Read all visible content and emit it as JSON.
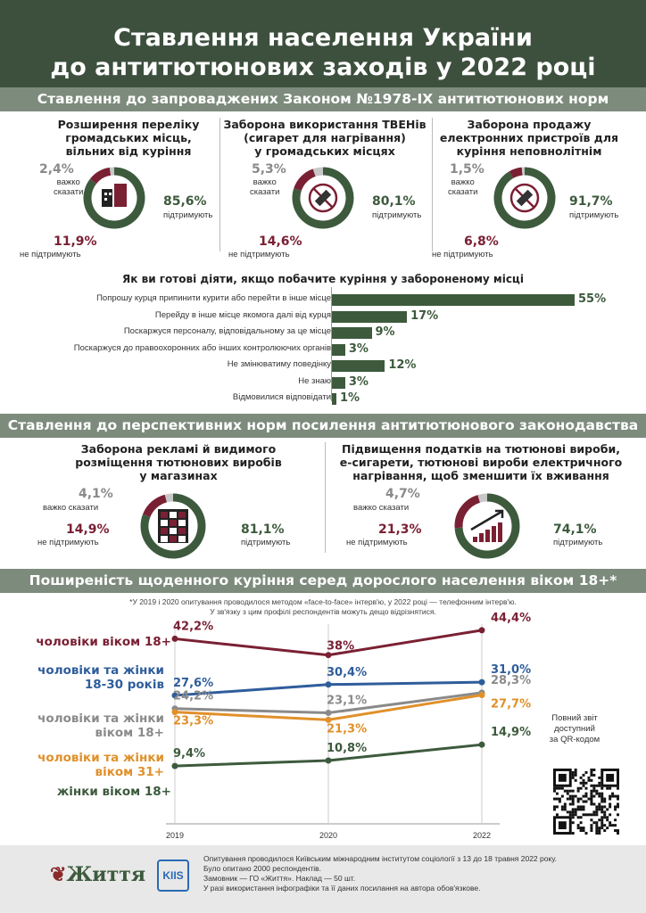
{
  "title": {
    "line1": "Ставлення населення України",
    "line2": "до антитютюнових заходів у 2022 році"
  },
  "section1": {
    "title": "Ставлення до запроваджених Законом №1978-IX антитютюнових норм"
  },
  "donuts_top": [
    {
      "title": [
        "Розширення переліку",
        "громадських місць,",
        "вільних від куріння"
      ],
      "support": "85,6%",
      "support_label": "підтримують",
      "oppose": "11,9%",
      "oppose_label": "не підтримують",
      "unsure": "2,4%",
      "unsure_label": [
        "важко",
        "сказати"
      ],
      "values": [
        85.6,
        11.9,
        2.4
      ],
      "icon": "buildings-icon"
    },
    {
      "title": [
        "Заборона використання ТВЕНів",
        "(сигарет для нагрівання)",
        "у громадських місцях"
      ],
      "support": "80,1%",
      "support_label": "підтримують",
      "oppose": "14,6%",
      "oppose_label": "не підтримують",
      "unsure": "5,3%",
      "unsure_label": [
        "важко",
        "сказати"
      ],
      "values": [
        80.1,
        14.6,
        5.3
      ],
      "icon": "no-heated-tobacco-icon"
    },
    {
      "title": [
        "Заборона продажу",
        "електронних пристроїв для",
        "куріння неповнолітнім"
      ],
      "support": "91,7%",
      "support_label": "підтримують",
      "oppose": "6,8%",
      "oppose_label": "не підтримують",
      "unsure": "1,5%",
      "unsure_label": [
        "важко",
        "сказати"
      ],
      "values": [
        91.7,
        6.8,
        1.5
      ],
      "icon": "no-vape-icon"
    }
  ],
  "question": "Як ви готові діяти, якщо побачите куріння у забороненому місці",
  "chart_data": [
    {
      "type": "bar",
      "title": "Як ви готові діяти, якщо побачите куріння у забороненому місці",
      "categories": [
        "Попрошу курця припинити курити або перейти в інше місце",
        "Перейду в інше місце якомога далі від курця",
        "Поскаржуся персоналу, відповідальному за це місце",
        "Поскаржуся до правоохоронних або інших контролюючих органів",
        "Не змінюватиму поведінку",
        "Не знаю",
        "Відмовилися відповідати"
      ],
      "values": [
        55,
        17,
        9,
        3,
        12,
        3,
        1
      ],
      "labels": [
        "55%",
        "17%",
        "9%",
        "3%",
        "12%",
        "3%",
        "1%"
      ],
      "xlim": [
        0,
        55
      ]
    },
    {
      "type": "pie",
      "title": "Розширення переліку громадських місць, вільних від куріння",
      "categories": [
        "підтримують",
        "не підтримують",
        "важко сказати"
      ],
      "values": [
        85.6,
        11.9,
        2.4
      ]
    },
    {
      "type": "pie",
      "title": "Заборона використання ТВЕНів (сигарет для нагрівання) у громадських місцях",
      "categories": [
        "підтримують",
        "не підтримують",
        "важко сказати"
      ],
      "values": [
        80.1,
        14.6,
        5.3
      ]
    },
    {
      "type": "pie",
      "title": "Заборона продажу електронних пристроїв для куріння неповнолітнім",
      "categories": [
        "підтримують",
        "не підтримують",
        "важко сказати"
      ],
      "values": [
        91.7,
        6.8,
        1.5
      ]
    },
    {
      "type": "pie",
      "title": "Заборона рекламі й видимого розміщення тютюнових виробів у магазинах",
      "categories": [
        "підтримують",
        "не підтримують",
        "важко сказати"
      ],
      "values": [
        81.1,
        14.9,
        4.1
      ]
    },
    {
      "type": "pie",
      "title": "Підвищення податків на тютюнові вироби, е-сигарети, тютюнові вироби електричного нагрівання, щоб зменшити їх вживання",
      "categories": [
        "підтримують",
        "не підтримують",
        "важко сказати"
      ],
      "values": [
        74.1,
        21.3,
        4.7
      ]
    },
    {
      "type": "line",
      "title": "Поширеність щоденного куріння серед дорослого населення віком 18+*",
      "x": [
        "2019",
        "2020",
        "2022"
      ],
      "series": [
        {
          "name": "чоловіки віком 18+",
          "values": [
            42.2,
            38,
            44.4
          ],
          "labels": [
            "42,2%",
            "38%",
            "44,4%"
          ],
          "color": "#7a2033"
        },
        {
          "name": "чоловіки та жінки 18-30 років",
          "values": [
            27.6,
            30.4,
            31.0
          ],
          "labels": [
            "27,6%",
            "30,4%",
            "31,0%"
          ],
          "color": "#2f5d9b"
        },
        {
          "name": "чоловіки та жінки віком 18+",
          "values": [
            24.2,
            23.1,
            28.3
          ],
          "labels": [
            "24,2%",
            "23,1%",
            "28,3%"
          ],
          "color": "#8a8a8a"
        },
        {
          "name": "чоловіки та жінки віком 31+",
          "values": [
            23.3,
            21.3,
            27.7
          ],
          "labels": [
            "23,3%",
            "21,3%",
            "27,7%"
          ],
          "color": "#e0902a"
        },
        {
          "name": "жінки віком 18+",
          "values": [
            9.4,
            10.8,
            14.9
          ],
          "labels": [
            "9,4%",
            "10,8%",
            "14,9%"
          ],
          "color": "#3d5a3d"
        }
      ]
    }
  ],
  "section2": {
    "title": "Ставлення до перспективних норм посилення антитютюнового законодавства"
  },
  "donuts_mid": [
    {
      "title": [
        "Заборона рекламі й видимого",
        "розміщення тютюнових виробів",
        "у магазинах"
      ],
      "support": "81,1%",
      "support_label": "підтримують",
      "oppose": "14,9%",
      "oppose_label": "не підтримують",
      "unsure": "4,1%",
      "unsure_label": "важко сказати",
      "values": [
        81.1,
        14.9,
        4.1
      ],
      "icon": "shelves-icon"
    },
    {
      "title": [
        "Підвищення податків на тютюнові вироби,",
        "е-сигарети, тютюнові вироби електричного",
        "нагрівання, щоб зменшити їх вживання"
      ],
      "support": "74,1%",
      "support_label": "підтримують",
      "oppose": "21,3%",
      "oppose_label": "не підтримують",
      "unsure": "4,7%",
      "unsure_label": "важко сказати",
      "values": [
        74.1,
        21.3,
        4.7
      ],
      "icon": "growth-chart-icon"
    }
  ],
  "section3": {
    "title": "Поширеність щоденного куріння серед дорослого населення віком 18+*"
  },
  "note": [
    "*У 2019 і 2020 опитування проводилося методом «face-to-face» інтерв'ю, у 2022 році — телефонним інтерв'ю.",
    "У зв'язку з цим профілі респондентів можуть дещо відрізнятися."
  ],
  "series_labels": [
    [
      "чоловіки віком 18+"
    ],
    [
      "чоловіки та жінки",
      "18-30 років"
    ],
    [
      "чоловіки та жінки",
      "віком 18+"
    ],
    [
      "чоловіки та жінки",
      "віком 31+"
    ],
    [
      "жінки віком 18+"
    ]
  ],
  "qr_text": [
    "Повний звіт",
    "доступний",
    "за QR-кодом"
  ],
  "footer": {
    "logo1": "Життя",
    "logo2": "KIIS",
    "lines": [
      "Опитування проводилося Київським міжнародним інститутом соціології з 13 до 18 травня 2022 року.",
      "Було опитано 2000 респондентів.",
      "Замовник — ГО «Життя». Наклад — 50 шт.",
      "У разі використання інфографіки та її даних посилання на автора обов'язкове."
    ]
  },
  "colors": {
    "green": "#3d5a3d",
    "red": "#7a2033",
    "grey": "#c8c8c8",
    "blue": "#2f5d9b",
    "orange": "#e0902a",
    "band": "#7d8b7d",
    "header": "#3d4f3d"
  }
}
